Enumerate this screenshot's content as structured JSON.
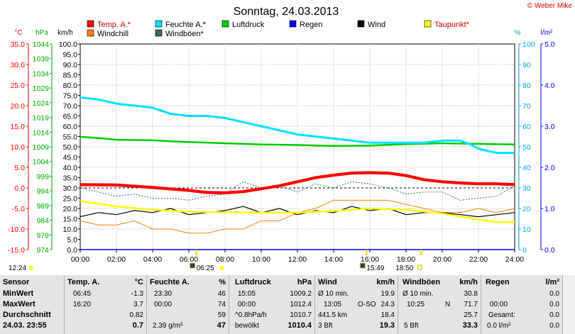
{
  "title": "Sonntag, 24.03.2013",
  "copyright": "© Weber Mike",
  "legend": [
    {
      "label": "Temp. A.*",
      "color": "#ff0000"
    },
    {
      "label": "Feuchte A.*",
      "color": "#00e0ff"
    },
    {
      "label": "Luftdruck",
      "color": "#00cc00"
    },
    {
      "label": "Regen",
      "color": "#0000ff"
    },
    {
      "label": "Wind",
      "color": "#000000"
    },
    {
      "label": "Taupunkt*",
      "color": "#ffff00"
    },
    {
      "label": "Windchill",
      "color": "#ff8000"
    },
    {
      "label": "Windböen*",
      "color": "#336666"
    }
  ],
  "axes": {
    "temp_unit": "°C",
    "press_unit": "hPa",
    "speed_unit": "km/h",
    "hum_unit": "%",
    "rain_unit": "l/m²",
    "temp_ticks": [
      "35.0",
      "30.0",
      "25.0",
      "20.0",
      "15.0",
      "10.0",
      "5.0",
      "0.0",
      "-5.0",
      "-10.0",
      "-15.0"
    ],
    "press_ticks": [
      "1044",
      "1039",
      "1034",
      "1029",
      "1024",
      "1019",
      "1014",
      "1009",
      "1004",
      "999",
      "994",
      "989",
      "984",
      "979",
      "974"
    ],
    "speed_ticks": [
      "100.0",
      "95.0",
      "90.0",
      "85.0",
      "80.0",
      "75.0",
      "70.0",
      "65.0",
      "60.0",
      "55.0",
      "50.0",
      "45.0",
      "40.0",
      "35.0",
      "30.0",
      "25.0",
      "20.0",
      "15.0",
      "10.0",
      "5.0",
      "0.0"
    ],
    "hum_ticks": [
      "100",
      "90",
      "80",
      "70",
      "60",
      "50",
      "40",
      "30",
      "20",
      "10",
      "0"
    ],
    "rain_ticks": [
      "5.0",
      "4.0",
      "3.0",
      "2.0",
      "1.0",
      "0.0"
    ],
    "x_ticks": [
      "00:00",
      "02:00",
      "04:00",
      "06:00",
      "08:00",
      "10:00",
      "12:00",
      "14:00",
      "16:00",
      "18:00",
      "20:00",
      "22:00",
      "24:00"
    ]
  },
  "events": {
    "moonset": "12:24",
    "sunrise": "06:25",
    "sunset": "18:50",
    "moonrise": "15:49"
  },
  "chart_data": {
    "type": "line",
    "x_unit": "hours",
    "xlim": [
      0,
      24
    ],
    "series": [
      {
        "name": "Temp. A.*",
        "unit": "°C",
        "color": "#ff0000",
        "x": [
          0,
          2,
          4,
          6,
          7,
          8,
          9,
          10,
          11,
          12,
          13,
          14,
          15,
          16,
          17,
          18,
          19,
          20,
          21,
          22,
          23,
          24
        ],
        "y": [
          0.8,
          0.7,
          0.1,
          -0.6,
          -1.1,
          -1.2,
          -0.9,
          -0.2,
          0.5,
          1.5,
          2.5,
          3.1,
          3.6,
          3.7,
          3.6,
          3.0,
          2.0,
          1.5,
          1.2,
          1.0,
          1.0,
          0.8
        ]
      },
      {
        "name": "Feuchte A.*",
        "unit": "%",
        "color": "#00e0ff",
        "x": [
          0,
          1,
          2,
          3,
          4,
          5,
          6,
          7,
          8,
          9,
          10,
          11,
          12,
          13,
          14,
          15,
          16,
          17,
          18,
          19,
          20,
          21,
          21.6,
          22,
          23,
          24
        ],
        "y": [
          74,
          73,
          71,
          70,
          69,
          66,
          65,
          65,
          64,
          62,
          60,
          58,
          56,
          55,
          54,
          53,
          52,
          52,
          52,
          52,
          53,
          53,
          51,
          49,
          47,
          47
        ]
      },
      {
        "name": "Luftdruck",
        "unit": "hPa",
        "color": "#00cc00",
        "x": [
          0,
          1,
          2,
          4,
          6,
          8,
          10,
          12,
          14,
          16,
          18,
          20,
          22,
          24
        ],
        "y": [
          1012.4,
          1012.0,
          1011.4,
          1011.2,
          1010.6,
          1010.2,
          1009.8,
          1009.6,
          1009.3,
          1009.4,
          1009.9,
          1010.2,
          1010.0,
          1009.8
        ]
      },
      {
        "name": "Regen",
        "unit": "l/m²",
        "color": "#0000ff",
        "x": [
          0,
          24
        ],
        "y": [
          0,
          0
        ]
      },
      {
        "name": "Wind",
        "unit": "km/h",
        "color": "#000000",
        "x": [
          0,
          1,
          2,
          3,
          4,
          5,
          6,
          7,
          8,
          9,
          10,
          11,
          12,
          13,
          14,
          15,
          16,
          17,
          18,
          19,
          20,
          21,
          22,
          23,
          24
        ],
        "y": [
          16,
          18,
          17,
          19,
          18,
          20,
          17,
          18,
          19,
          21,
          18,
          20,
          17,
          19,
          18,
          21,
          19,
          20,
          17,
          18,
          18,
          17,
          16,
          17,
          18
        ]
      },
      {
        "name": "Taupunkt*",
        "unit": "°C",
        "color": "#ffff00",
        "x": [
          0,
          2,
          4,
          6,
          8,
          10,
          12,
          14,
          16,
          18,
          20,
          22,
          23,
          24
        ],
        "y": [
          -3.2,
          -4.5,
          -5.3,
          -5.8,
          -5.9,
          -6.0,
          -6.0,
          -5.6,
          -5.0,
          -5.3,
          -6.2,
          -7.7,
          -8.3,
          -8.3
        ]
      },
      {
        "name": "Windchill",
        "unit": "°C",
        "color": "#ff8000",
        "x": [
          0,
          1,
          2,
          3,
          4,
          5,
          6,
          7,
          8,
          9,
          10,
          11,
          12,
          13,
          14,
          15,
          16,
          17,
          18,
          19,
          20,
          21,
          22,
          23,
          24
        ],
        "y": [
          -8,
          -9,
          -9,
          -8,
          -10,
          -10,
          -11,
          -11,
          -10,
          -10,
          -8,
          -8,
          -6,
          -5,
          -3,
          -3,
          -3,
          -3,
          -4,
          -5,
          -6,
          -6,
          -5,
          -6,
          -5
        ]
      },
      {
        "name": "Windböen*",
        "unit": "km/h",
        "color": "#336666",
        "x": [
          0,
          1,
          2,
          3,
          4,
          5,
          6,
          7,
          8,
          9,
          10,
          11,
          12,
          13,
          14,
          15,
          16,
          17,
          18,
          19,
          20,
          21,
          22,
          23,
          24
        ],
        "y": [
          30,
          28,
          26,
          27,
          25,
          25,
          24,
          26,
          27,
          33,
          30,
          31,
          28,
          32,
          30,
          33,
          32,
          30,
          27,
          28,
          28,
          24,
          25,
          26,
          31
        ]
      }
    ]
  },
  "stats": {
    "rows_label": [
      "Sensor",
      "MinWert",
      "MaxWert",
      "Durchschnitt",
      "24.03.  23:55"
    ],
    "temp": {
      "header": "Temp. A.",
      "unit": "°C",
      "rows": [
        [
          "06:45",
          "-1.3"
        ],
        [
          "16:20",
          "3.7"
        ],
        [
          "",
          "0.82"
        ],
        [
          "",
          "0.7"
        ]
      ]
    },
    "hum": {
      "header": "Feuchte A.",
      "unit": "%",
      "rows": [
        [
          "23:30",
          "46"
        ],
        [
          "00:00",
          "74"
        ],
        [
          "",
          "59"
        ],
        [
          "2.39 g/m³",
          "47"
        ]
      ]
    },
    "press": {
      "header": "Luftdruck",
      "unit": "hPa",
      "rows": [
        [
          "15:05",
          "1009.2"
        ],
        [
          "00:00",
          "1012.4"
        ],
        [
          "^0.8hPa/h",
          "1010.7"
        ],
        [
          "bewölkt",
          "1010.4"
        ]
      ]
    },
    "wind": {
      "header": "Wind",
      "unit": "km/h",
      "rows": [
        [
          "Ø 10 min.",
          "",
          "19.9"
        ],
        [
          "13:05",
          "O-SO",
          "24.3"
        ],
        [
          "441.5 km",
          "",
          "18.4"
        ],
        [
          "3 Bft",
          "",
          "19.3"
        ]
      ]
    },
    "gust": {
      "header": "Windböen",
      "unit": "km/h",
      "rows": [
        [
          "Ø 10 min.",
          "",
          "30.8"
        ],
        [
          "10:25",
          "N",
          "71.7"
        ],
        [
          "",
          "",
          "25.7"
        ],
        [
          "5 Bft",
          "",
          "33.3"
        ]
      ]
    },
    "rain": {
      "header": "Regen",
      "unit": "l/m²",
      "rows": [
        [
          "",
          "0.0"
        ],
        [
          "00:00",
          "0.0"
        ],
        [
          "Gesamt:",
          "0.0"
        ],
        [
          "0.0 l/m²",
          "0.0"
        ]
      ]
    }
  }
}
